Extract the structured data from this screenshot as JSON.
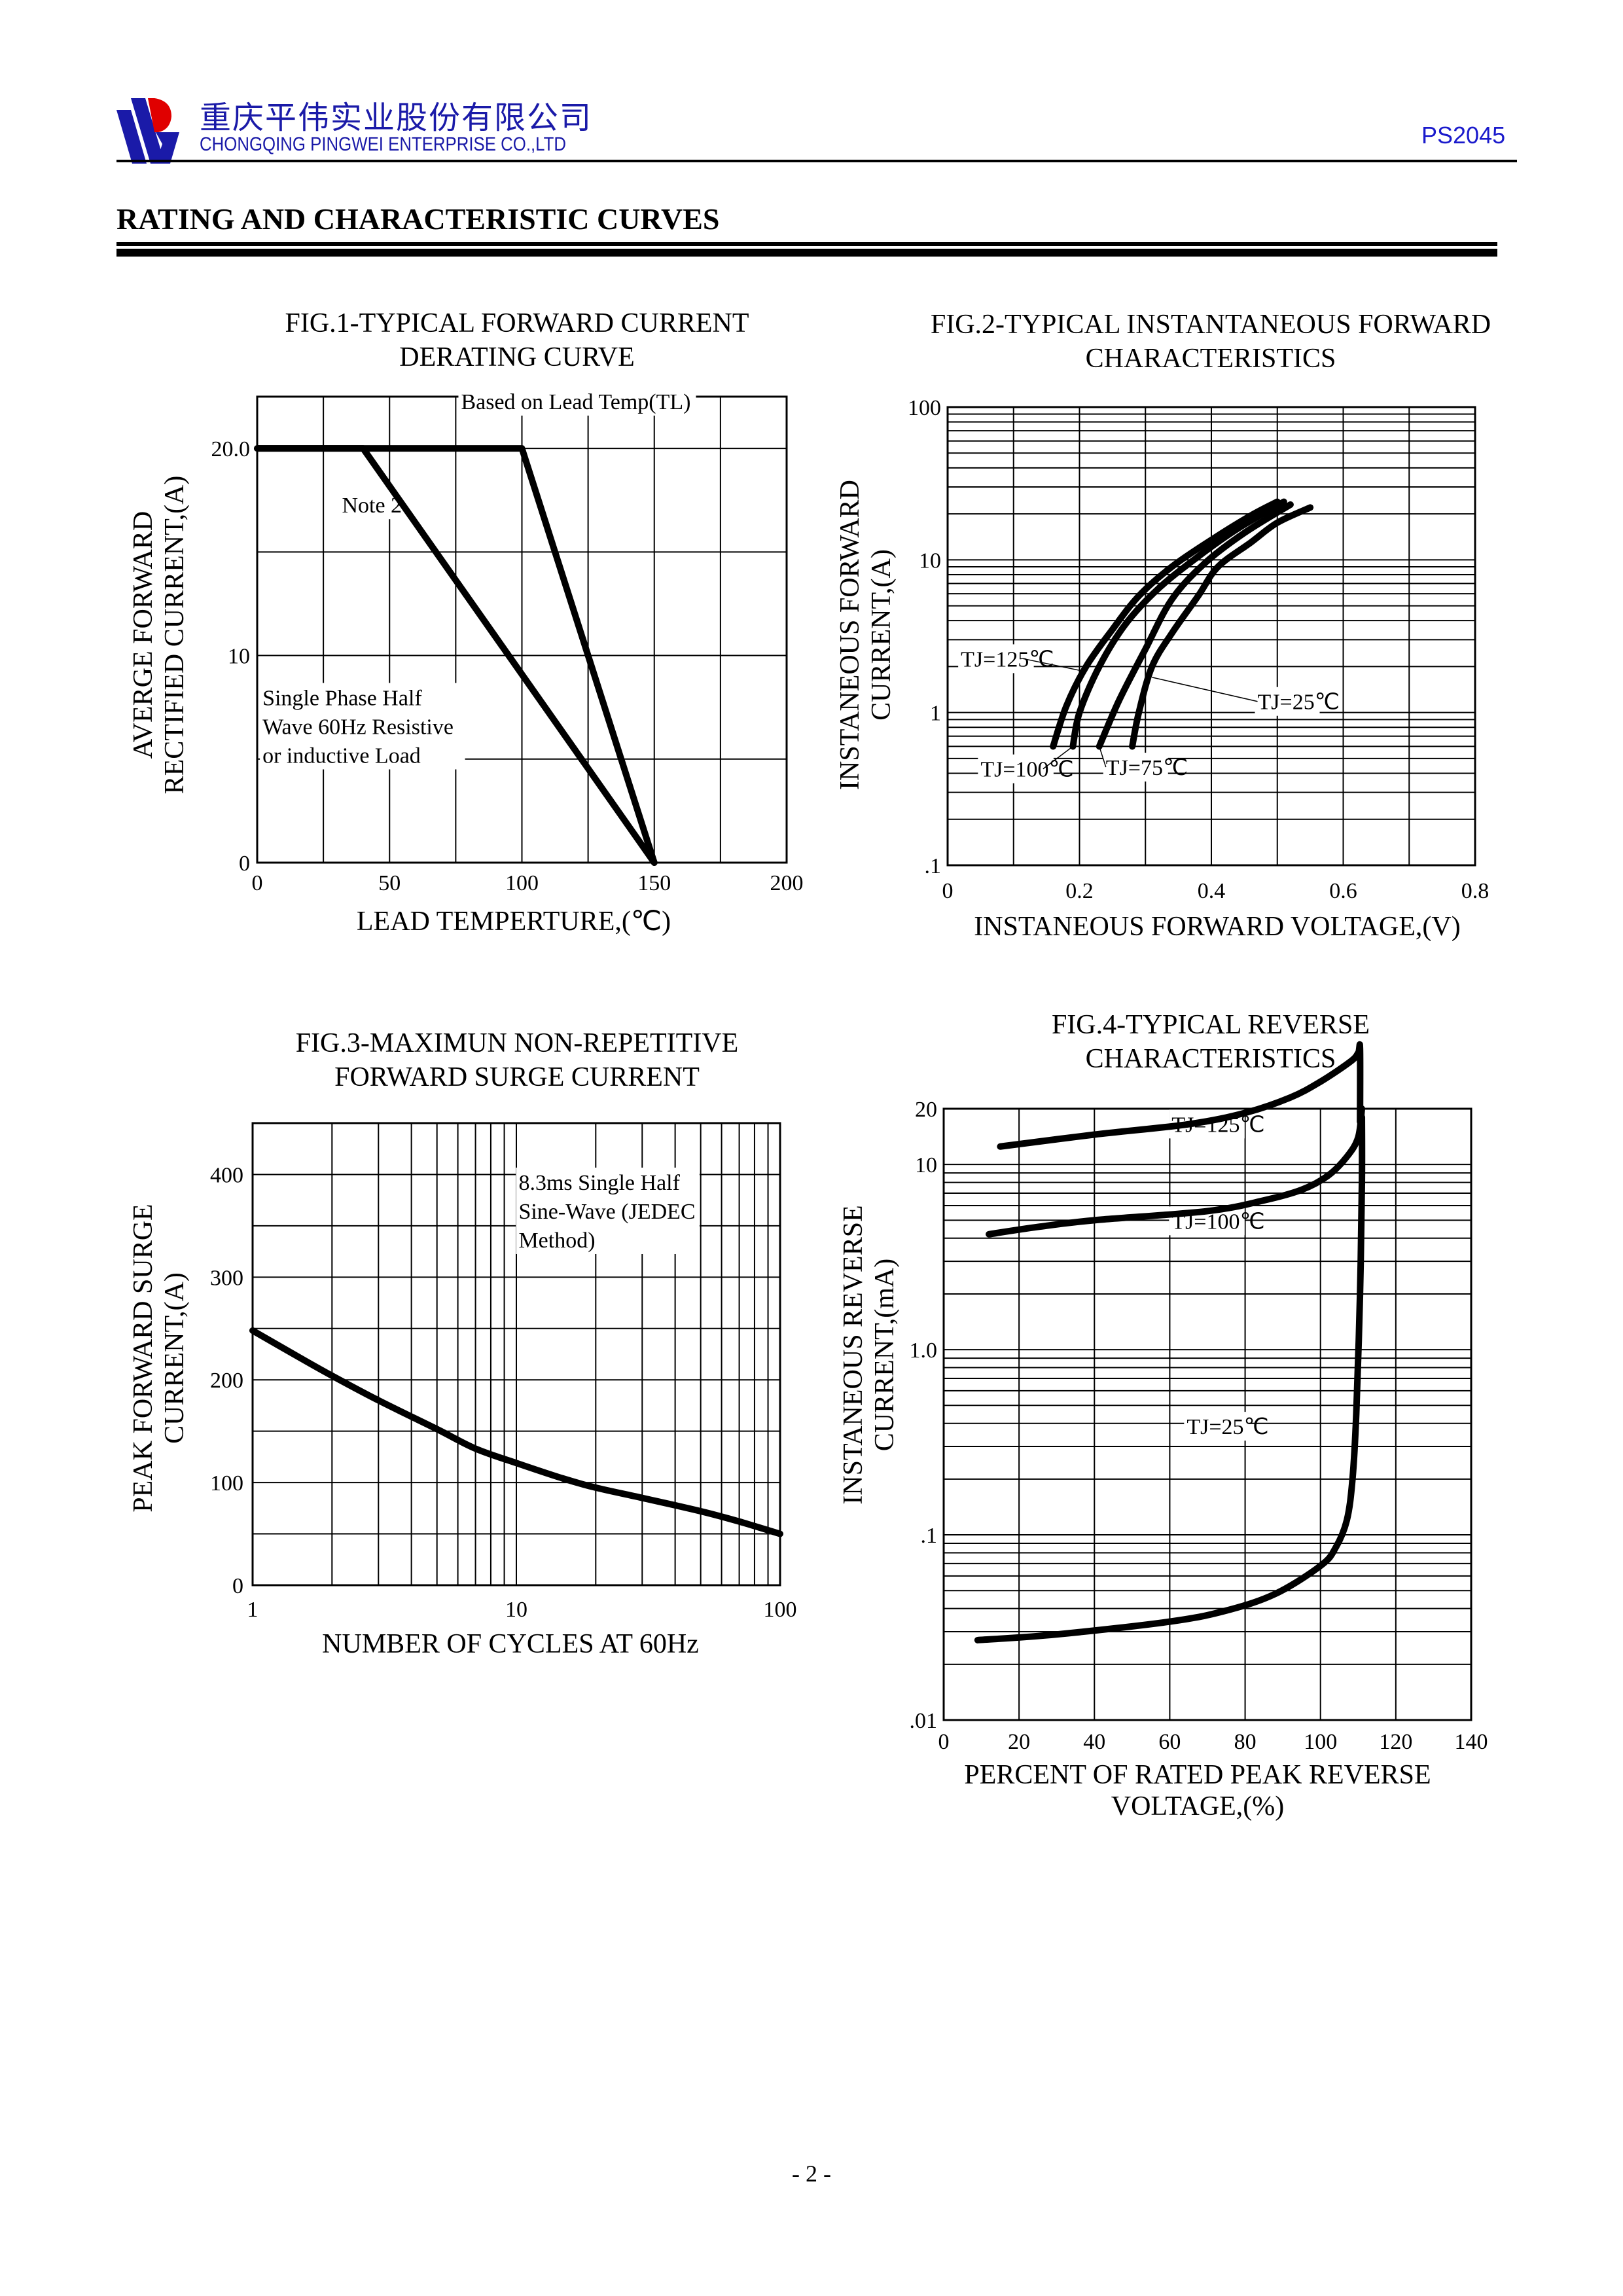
{
  "header": {
    "company_name_cn": "重庆平伟实业股份有限公司",
    "company_name_en": "CHONGQING PINGWEI ENTERPRISE CO.,LTD",
    "part_number": "PS2045",
    "logo_colors": {
      "blue": "#1a1aa8",
      "red": "#e00000"
    },
    "text_color": "#1a1aa8"
  },
  "section_title": "RATING AND CHARACTERISTIC CURVES",
  "footer": {
    "page_number": "- 2 -"
  },
  "chart_data": [
    {
      "id": "fig1",
      "type": "line",
      "title": [
        "FIG.1-TYPICAL FORWARD CURRENT",
        "DERATING CURVE"
      ],
      "xlabel": "LEAD  TEMPERTURE,(℃)",
      "ylabel": [
        "AVERGE FORWARD",
        "RECTIFIED CURRENT,(A)"
      ],
      "xlim": [
        0,
        200
      ],
      "ylim": [
        0,
        22.5
      ],
      "x_scale": "linear",
      "y_scale": "linear",
      "grid": true,
      "x_ticks": [
        0,
        50,
        100,
        150,
        200
      ],
      "x_tick_labels": [
        "0",
        "50",
        "100",
        "150",
        "200"
      ],
      "y_ticks": [
        0,
        10,
        20
      ],
      "y_tick_labels": [
        "0",
        "10",
        "20.0"
      ],
      "x_grid": [
        0,
        25,
        50,
        75,
        100,
        125,
        150,
        175,
        200
      ],
      "y_grid": [
        0,
        5,
        10,
        15,
        20,
        22.5
      ],
      "series": [
        {
          "name": "Based on Lead Temp(TL)",
          "x": [
            0,
            100,
            150
          ],
          "y": [
            20,
            20,
            0
          ]
        },
        {
          "name": "Note 2",
          "x": [
            0,
            40,
            150
          ],
          "y": [
            20,
            20,
            0
          ]
        }
      ],
      "annotations": [
        {
          "text": "Based on Lead Temp(TL)",
          "x": 77,
          "y": 21.9
        },
        {
          "text": "Note 2",
          "x": 32,
          "y": 16.9
        },
        {
          "text": [
            "Single Phase Half",
            "Wave 60Hz Resistive",
            "or inductive Load"
          ],
          "x": 2,
          "y": 7.6
        }
      ]
    },
    {
      "id": "fig2",
      "type": "line",
      "title": [
        "FIG.2-TYPICAL INSTANTANEOUS FORWARD",
        "CHARACTERISTICS"
      ],
      "xlabel": "INSTANEOUS FORWARD VOLTAGE,(V)",
      "ylabel": [
        "INSTANEOUS FORWARD",
        "CURRENT,(A)"
      ],
      "xlim": [
        0,
        0.8
      ],
      "ylim": [
        0.1,
        100
      ],
      "x_scale": "linear",
      "y_scale": "log",
      "grid": true,
      "x_ticks": [
        0,
        0.2,
        0.4,
        0.6,
        0.8
      ],
      "x_tick_labels": [
        "0",
        "0.2",
        "0.4",
        "0.6",
        "0.8"
      ],
      "y_ticks": [
        0.1,
        1,
        10,
        100
      ],
      "y_tick_labels": [
        ".1",
        "1",
        "10",
        "100"
      ],
      "x_grid": [
        0,
        0.1,
        0.2,
        0.3,
        0.4,
        0.5,
        0.6,
        0.7,
        0.8
      ],
      "series": [
        {
          "name": "TJ=125℃",
          "x": [
            0.16,
            0.18,
            0.21,
            0.25,
            0.29,
            0.34,
            0.4,
            0.46,
            0.5
          ],
          "y": [
            0.6,
            1.1,
            2.0,
            3.5,
            5.8,
            9.0,
            13.5,
            19.5,
            24
          ]
        },
        {
          "name": "TJ=100℃",
          "x": [
            0.19,
            0.2,
            0.23,
            0.27,
            0.32,
            0.38,
            0.44,
            0.51
          ],
          "y": [
            0.6,
            1.0,
            2.0,
            3.8,
            6.5,
            10.5,
            16,
            24
          ]
        },
        {
          "name": "TJ=75℃",
          "x": [
            0.23,
            0.26,
            0.3,
            0.34,
            0.39,
            0.45,
            0.52
          ],
          "y": [
            0.6,
            1.2,
            2.6,
            5.5,
            9.5,
            15,
            23
          ]
        },
        {
          "name": "TJ=25℃",
          "x": [
            0.28,
            0.29,
            0.31,
            0.34,
            0.38,
            0.41,
            0.46,
            0.5,
            0.55
          ],
          "y": [
            0.6,
            1.0,
            2.0,
            3.3,
            5.8,
            9.0,
            13,
            17.5,
            22
          ]
        }
      ],
      "annotations": [
        {
          "text": "TJ=125℃",
          "x": 0.02,
          "y": 2.0,
          "arrow_to": [
            0.21,
            1.85
          ]
        },
        {
          "text": "TJ=25℃",
          "x": 0.47,
          "y": 1.05,
          "arrow_to": [
            0.31,
            1.7
          ]
        },
        {
          "text": "TJ=100℃",
          "x": 0.05,
          "y": 0.38,
          "arrow_to": [
            0.19,
            0.6
          ]
        },
        {
          "text": "TJ=75℃",
          "x": 0.24,
          "y": 0.39,
          "arrow_to": [
            0.23,
            0.6
          ]
        }
      ]
    },
    {
      "id": "fig3",
      "type": "line",
      "title": [
        "FIG.3-MAXIMUN NON-REPETITIVE",
        "FORWARD SURGE CURRENT"
      ],
      "xlabel": "NUMBER OF CYCLES AT 60Hz",
      "ylabel": [
        "PEAK FORWARD SURGE",
        "CURRENT,(A)"
      ],
      "xlim": [
        1,
        100
      ],
      "ylim": [
        0,
        450
      ],
      "x_scale": "log",
      "y_scale": "linear",
      "grid": true,
      "x_ticks": [
        1,
        10,
        100
      ],
      "x_tick_labels": [
        "1",
        "10",
        "100"
      ],
      "y_ticks": [
        0,
        100,
        200,
        300,
        400
      ],
      "y_tick_labels": [
        "0",
        "100",
        "200",
        "300",
        "400"
      ],
      "y_grid": [
        0,
        50,
        100,
        150,
        200,
        250,
        300,
        350,
        400,
        450
      ],
      "series": [
        {
          "name": "Surge",
          "x": [
            1,
            1.5,
            2,
            3,
            5,
            7,
            10,
            15,
            20,
            30,
            50,
            70,
            100
          ],
          "y": [
            248,
            222,
            204,
            180,
            152,
            133,
            119,
            104,
            95,
            85,
            72,
            62,
            50
          ]
        }
      ],
      "annotations": [
        {
          "text": [
            "8.3ms Single Half",
            "Sine-Wave (JEDEC",
            "Method)"
          ],
          "x": 10.2,
          "y": 385
        }
      ]
    },
    {
      "id": "fig4",
      "type": "line",
      "title": [
        "FIG.4-TYPICAL REVERSE",
        "CHARACTERISTICS"
      ],
      "xlabel": [
        "PERCENT OF RATED PEAK REVERSE",
        "VOLTAGE,(%)"
      ],
      "ylabel": [
        "INSTANEOUS REVERSE",
        "CURRENT,(mA)"
      ],
      "xlim": [
        0,
        140
      ],
      "ylim": [
        0.01,
        20
      ],
      "x_scale": "linear",
      "y_scale": "log",
      "grid": true,
      "x_ticks": [
        0,
        20,
        40,
        60,
        80,
        100,
        120,
        140
      ],
      "x_tick_labels": [
        "0",
        "20",
        "40",
        "60",
        "80",
        "100",
        "120",
        "140"
      ],
      "y_ticks": [
        0.01,
        0.1,
        1,
        10,
        20
      ],
      "y_tick_labels": [
        ".01",
        ".1",
        "1.0",
        "10",
        "20"
      ],
      "x_grid": [
        0,
        20,
        40,
        60,
        80,
        100,
        120,
        140
      ],
      "series": [
        {
          "name": "TJ=125℃",
          "x": [
            15,
            40,
            65,
            80,
            92,
            100,
            108,
            110,
            110.5,
            110.5
          ],
          "y": [
            12.5,
            14.5,
            16.5,
            19,
            23,
            28,
            36,
            40,
            42,
            17
          ]
        },
        {
          "name": "TJ=100℃",
          "x": [
            12,
            25,
            40,
            70,
            85,
            95,
            102,
            107,
            110,
            111
          ],
          "y": [
            4.2,
            4.6,
            5.0,
            5.6,
            6.4,
            7.3,
            8.7,
            11,
            14,
            20
          ]
        },
        {
          "name": "TJ=25℃",
          "x": [
            9,
            30,
            60,
            75,
            88,
            100,
            104,
            107,
            108.5,
            109.5,
            110.5,
            111,
            111
          ],
          "y": [
            0.027,
            0.029,
            0.034,
            0.039,
            0.048,
            0.068,
            0.085,
            0.12,
            0.2,
            0.45,
            2.0,
            8,
            18
          ]
        }
      ],
      "annotations": [
        {
          "text": "TJ=125℃",
          "x": 60.5,
          "y": 15.0
        },
        {
          "text": "TJ=100℃",
          "x": 60.5,
          "y": 4.5
        },
        {
          "text": "TJ=25℃",
          "x": 64.5,
          "y": 0.35
        }
      ]
    }
  ]
}
